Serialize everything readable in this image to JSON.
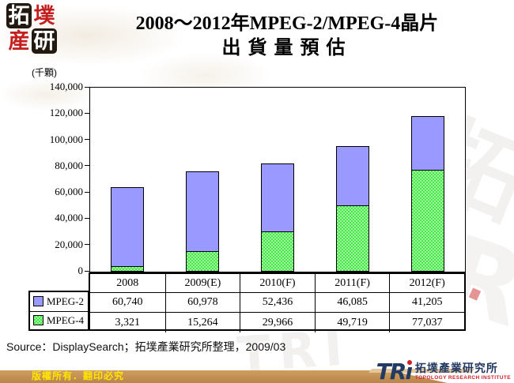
{
  "header": {
    "seal": {
      "top_left": "拓",
      "top_right": "墣",
      "bottom_left": "産",
      "bottom_right": "研"
    },
    "title_line1": "2008～2012年MPEG-2/MPEG-4晶片",
    "title_line2": "出貨量預估"
  },
  "chart_data": {
    "type": "bar",
    "stacked": true,
    "title": "2008～2012年MPEG-2/MPEG-4晶片出貨量預估",
    "unit_label": "(千顆)",
    "categories": [
      "2008",
      "2009(E)",
      "2010(F)",
      "2011(F)",
      "2012(F)"
    ],
    "series": [
      {
        "name": "MPEG-2",
        "color": "#9999FF",
        "stack_order": "top",
        "values": [
          60740,
          60978,
          52436,
          46085,
          41205
        ],
        "display": [
          "60,740",
          "60,978",
          "52,436",
          "46,085",
          "41,205"
        ]
      },
      {
        "name": "MPEG-4",
        "color": "#4CE34C",
        "pattern": "checker",
        "stack_order": "bottom",
        "values": [
          3321,
          15264,
          29966,
          49719,
          77037
        ],
        "display": [
          "3,321",
          "15,264",
          "29,966",
          "49,719",
          "77,037"
        ]
      }
    ],
    "ylim": [
      0,
      140000
    ],
    "ytick_step": 20000,
    "ytick_labels": [
      "0",
      "20,000",
      "40,000",
      "60,000",
      "80,000",
      "100,000",
      "120,000",
      "140,000"
    ],
    "grid": false,
    "legend_position": "table-rows-left"
  },
  "footer": {
    "source_text": "Source：DisplaySearch；拓墣產業研究所整理，2009/03",
    "copyright_text": "版權所有．翻印必究",
    "band_color": "#C4924F",
    "tri_logo": {
      "logotype": "TRi",
      "name_zh": "拓墣產業研究所",
      "name_en": "TOPOLOGY RESEARCH INSTITUTE",
      "navy": "#233A63",
      "red": "#CC2128"
    }
  },
  "watermark": {
    "glyphs": [
      "拓",
      "R",
      "TRI"
    ]
  }
}
